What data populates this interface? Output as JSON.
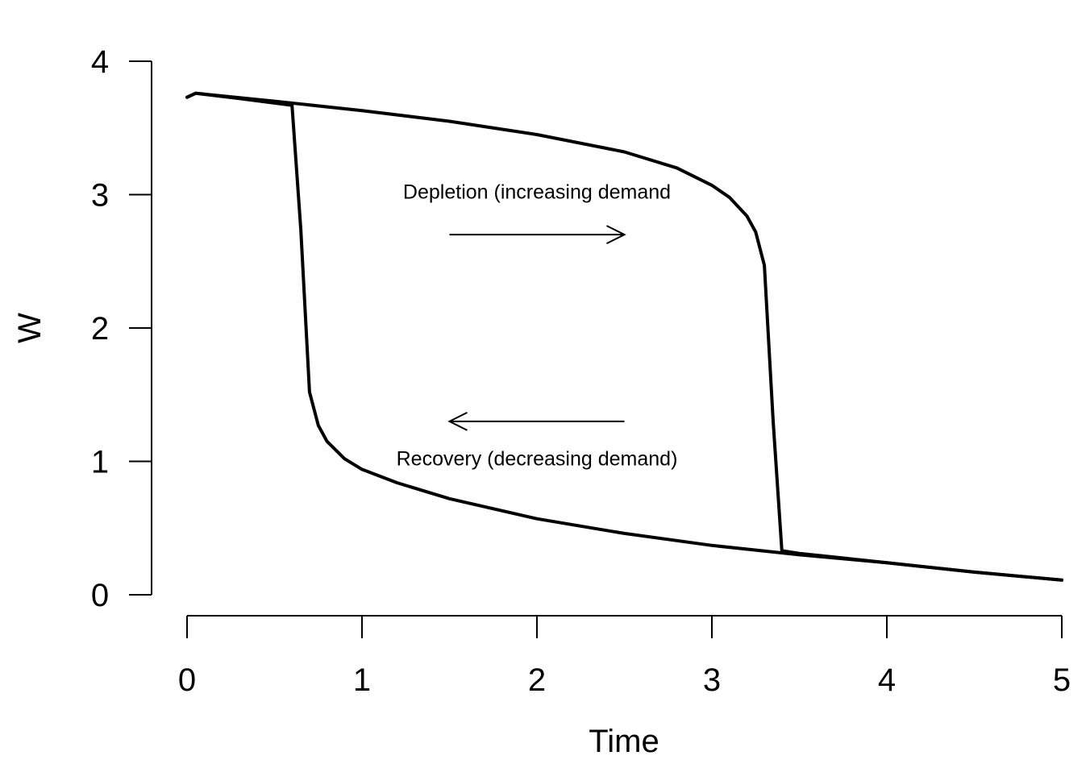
{
  "chart_data": {
    "type": "line",
    "title": "",
    "xlabel": "Time",
    "ylabel": "W",
    "xlim": [
      0,
      5
    ],
    "ylim": [
      0,
      4
    ],
    "x_ticks": [
      "0",
      "1",
      "2",
      "3",
      "4",
      "5"
    ],
    "y_ticks": [
      "0",
      "1",
      "2",
      "3",
      "4"
    ],
    "grid": false,
    "series": [
      {
        "label": "depletion",
        "points": [
          [
            0.0,
            3.73
          ],
          [
            0.05,
            3.76
          ],
          [
            0.5,
            3.7
          ],
          [
            1.0,
            3.63
          ],
          [
            1.5,
            3.55
          ],
          [
            2.0,
            3.45
          ],
          [
            2.5,
            3.32
          ],
          [
            2.8,
            3.2
          ],
          [
            3.0,
            3.07
          ],
          [
            3.1,
            2.98
          ],
          [
            3.2,
            2.84
          ],
          [
            3.25,
            2.72
          ],
          [
            3.3,
            2.47
          ],
          [
            3.35,
            1.3
          ],
          [
            3.4,
            0.33
          ],
          [
            3.5,
            0.31
          ],
          [
            4.0,
            0.24
          ],
          [
            4.5,
            0.17
          ],
          [
            5.0,
            0.11
          ]
        ]
      },
      {
        "label": "recovery",
        "points": [
          [
            5.0,
            0.11
          ],
          [
            4.5,
            0.17
          ],
          [
            4.0,
            0.24
          ],
          [
            3.5,
            0.3
          ],
          [
            3.0,
            0.37
          ],
          [
            2.5,
            0.46
          ],
          [
            2.0,
            0.57
          ],
          [
            1.5,
            0.72
          ],
          [
            1.2,
            0.84
          ],
          [
            1.0,
            0.94
          ],
          [
            0.9,
            1.02
          ],
          [
            0.8,
            1.15
          ],
          [
            0.75,
            1.27
          ],
          [
            0.7,
            1.52
          ],
          [
            0.65,
            2.74
          ],
          [
            0.6,
            3.67
          ],
          [
            0.3,
            3.72
          ],
          [
            0.05,
            3.76
          ],
          [
            0.0,
            3.73
          ]
        ]
      }
    ],
    "annotations": [
      {
        "text": "Depletion (increasing demand",
        "x": 2.0,
        "y": 2.97
      },
      {
        "text": "Recovery (decreasing demand)",
        "x": 2.0,
        "y": 0.97
      }
    ],
    "arrows": [
      {
        "direction": "right",
        "x_from": 1.5,
        "x_to": 2.5,
        "y": 2.7
      },
      {
        "direction": "left",
        "x_from": 2.5,
        "x_to": 1.5,
        "y": 1.3
      }
    ]
  }
}
